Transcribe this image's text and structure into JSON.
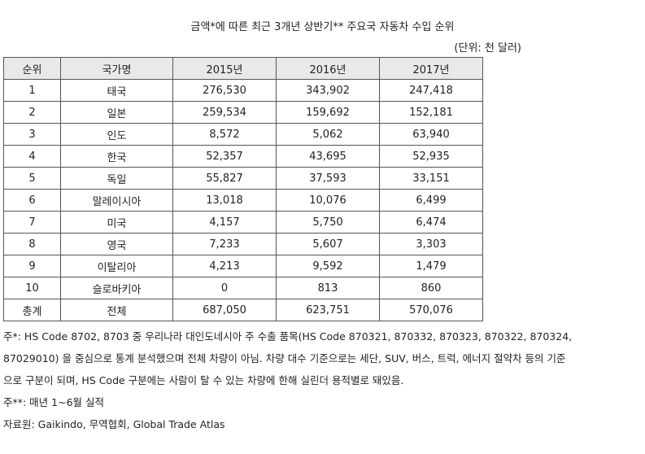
{
  "title": "금액*에 따른 최근 3개년 상반기** 주요국 자동차 수입 순위",
  "unit": "(단위: 천 달러)",
  "table": {
    "headers": [
      "순위",
      "국가명",
      "2015년",
      "2016년",
      "2017년"
    ],
    "rows": [
      [
        "1",
        "태국",
        "276,530",
        "343,902",
        "247,418"
      ],
      [
        "2",
        "일본",
        "259,534",
        "159,692",
        "152,181"
      ],
      [
        "3",
        "인도",
        "8,572",
        "5,062",
        "63,940"
      ],
      [
        "4",
        "한국",
        "52,357",
        "43,695",
        "52,935"
      ],
      [
        "5",
        "독일",
        "55,827",
        "37,593",
        "33,151"
      ],
      [
        "6",
        "말레이시아",
        "13,018",
        "10,076",
        "6,499"
      ],
      [
        "7",
        "미국",
        "4,157",
        "5,750",
        "6,474"
      ],
      [
        "8",
        "영국",
        "7,233",
        "5,607",
        "3,303"
      ],
      [
        "9",
        "이탈리아",
        "4,213",
        "9,592",
        "1,479"
      ],
      [
        "10",
        "슬로바키아",
        "0",
        "813",
        "860"
      ],
      [
        "총계",
        "전체",
        "687,050",
        "623,751",
        "570,076"
      ]
    ]
  },
  "notes": {
    "line1": "주*: HS Code 8702, 8703 중 우리나라 대인도네시아 주 수출 품목(HS Code 870321, 870332, 870323, 870322, 870324,",
    "line2": "87029010) 을 중심으로 통계 분석했으며 전체 차량이 아님. 차량 대수 기준으로는 세단, SUV, 버스, 트럭, 에너지 절약차 등의 기준",
    "line3": "으로 구분이 되며, HS Code 구분에는 사람이 탈 수 있는 차량에 한해 실린더 용적별로 돼있음.",
    "line4": "주**: 매년 1~6월 실적",
    "line5": "자료원: Gaikindo, 무역협회, Global Trade Atlas"
  }
}
